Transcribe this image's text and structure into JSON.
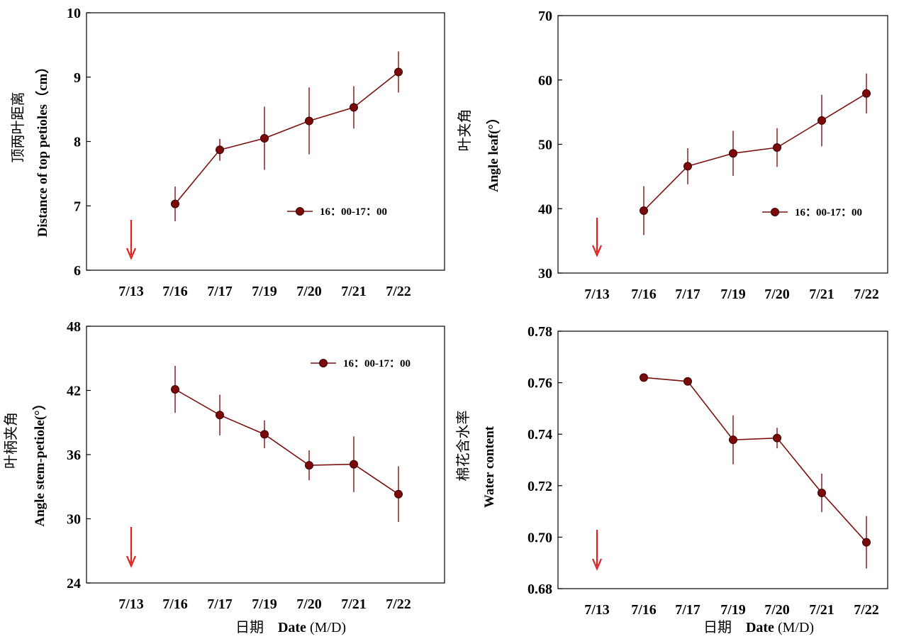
{
  "colors": {
    "series": "#7a1212",
    "marker": "#7b0a0a",
    "arrow": "#e0201c",
    "axis": "#000000"
  },
  "x_axis_title": {
    "cn": "日期",
    "en": "Date",
    "unit": "(M/D)"
  },
  "chart_data": [
    {
      "type": "line",
      "ylabel_cn": "顶两叶距离",
      "ylabel_en": "Distance of top petioles（cm）",
      "categories": [
        "7/13",
        "7/16",
        "7/17",
        "7/19",
        "7/20",
        "7/21",
        "7/22"
      ],
      "ylim": [
        6,
        10
      ],
      "yticks": [
        "6",
        "7",
        "8",
        "9",
        "10"
      ],
      "series": [
        {
          "name": "16：00-17：00",
          "values": [
            null,
            7.03,
            7.87,
            8.05,
            8.32,
            8.53,
            9.08
          ],
          "errors": [
            null,
            0.27,
            0.17,
            0.49,
            0.52,
            0.33,
            0.32
          ]
        }
      ],
      "arrow_category": "7/13",
      "legend_position": "middle-right"
    },
    {
      "type": "line",
      "ylabel_cn": "叶夹角",
      "ylabel_en": "Angle leaf(°）",
      "categories": [
        "7/13",
        "7/16",
        "7/17",
        "7/19",
        "7/20",
        "7/21",
        "7/22"
      ],
      "ylim": [
        30,
        70
      ],
      "yticks": [
        "30",
        "40",
        "50",
        "60",
        "70"
      ],
      "series": [
        {
          "name": "16：00-17：00",
          "values": [
            null,
            39.7,
            46.6,
            48.6,
            49.5,
            53.7,
            57.9
          ],
          "errors": [
            null,
            3.8,
            2.8,
            3.5,
            3.0,
            4.0,
            3.1
          ]
        }
      ],
      "arrow_category": "7/13",
      "legend_position": "middle-right"
    },
    {
      "type": "line",
      "ylabel_cn": "叶柄夹角",
      "ylabel_en": "Angle stem-petiole(°）",
      "categories": [
        "7/13",
        "7/16",
        "7/17",
        "7/19",
        "7/20",
        "7/21",
        "7/22"
      ],
      "ylim": [
        24,
        48
      ],
      "yticks": [
        "24",
        "30",
        "36",
        "42",
        "48"
      ],
      "series": [
        {
          "name": "16：00-17：00",
          "values": [
            null,
            42.1,
            39.7,
            37.9,
            35.0,
            35.1,
            32.3
          ],
          "errors": [
            null,
            2.2,
            1.9,
            1.3,
            1.4,
            2.6,
            2.6
          ]
        }
      ],
      "arrow_category": "7/13",
      "legend_position": "top-right"
    },
    {
      "type": "line",
      "ylabel_cn": "棉花含水率",
      "ylabel_en": "Water content",
      "categories": [
        "7/13",
        "7/16",
        "7/17",
        "7/19",
        "7/20",
        "7/21",
        "7/22"
      ],
      "ylim": [
        0.68,
        0.78
      ],
      "yticks": [
        "0.68",
        "0.70",
        "0.72",
        "0.74",
        "0.76",
        "0.78"
      ],
      "series": [
        {
          "name": "",
          "values": [
            null,
            0.762,
            0.7605,
            0.7378,
            0.7385,
            0.7172,
            0.698
          ],
          "errors": [
            null,
            0.0,
            0.0,
            0.0095,
            0.004,
            0.0075,
            0.0102
          ]
        }
      ],
      "arrow_category": "7/13",
      "legend_position": ""
    }
  ]
}
